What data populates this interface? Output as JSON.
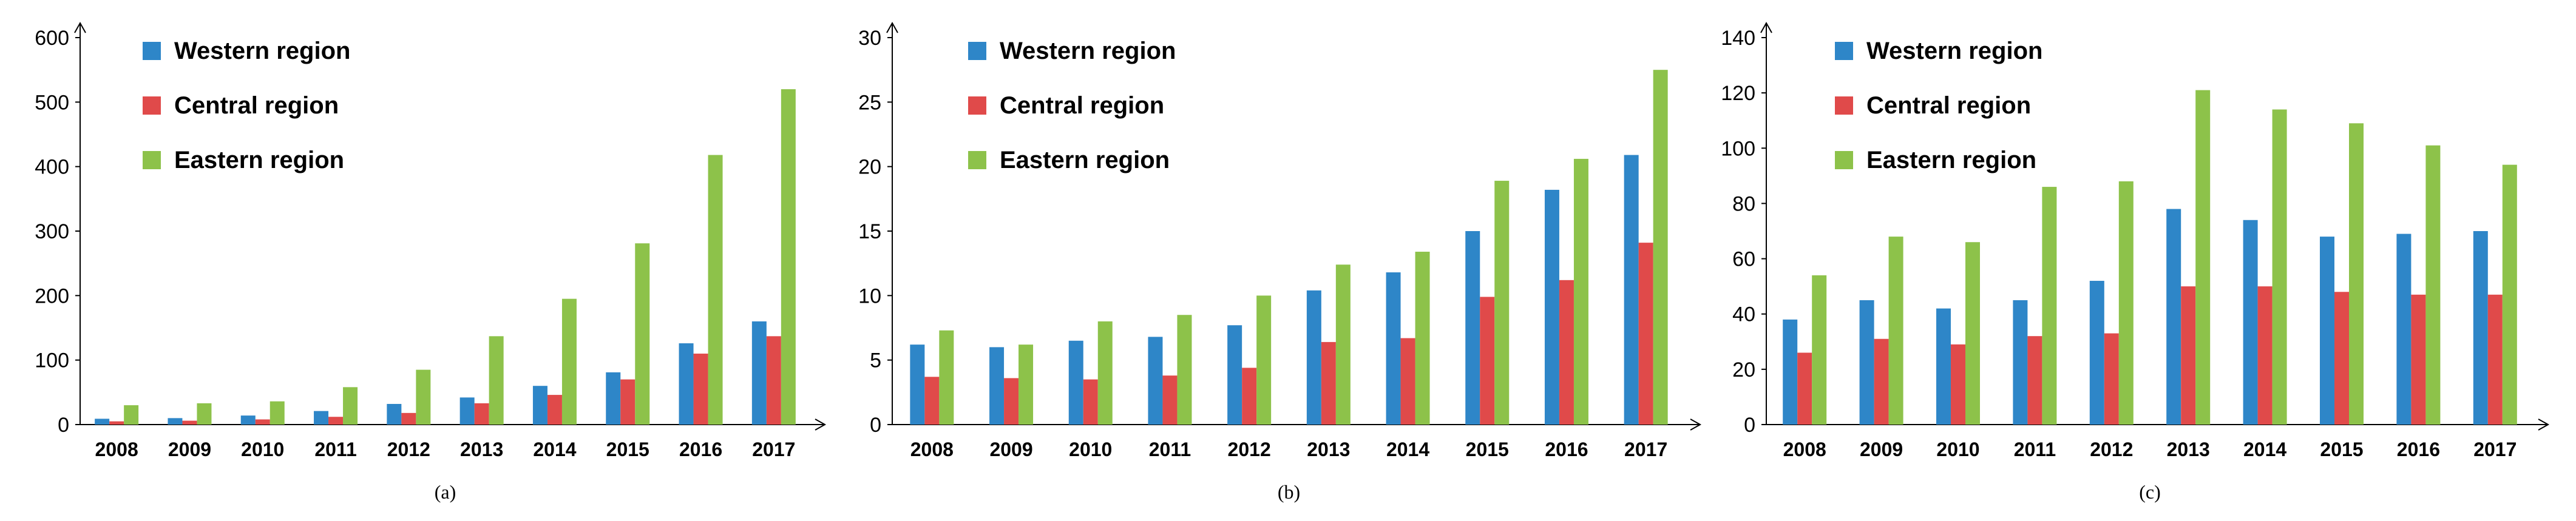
{
  "colors": {
    "western": "#2e86c8",
    "central": "#e04a4a",
    "eastern": "#8dc24a",
    "axis": "#000000"
  },
  "chart_data": [
    {
      "type": "bar",
      "caption": "(a)",
      "categories": [
        "2008",
        "2009",
        "2010",
        "2011",
        "2012",
        "2013",
        "2014",
        "2015",
        "2016",
        "2017"
      ],
      "ylim": [
        0,
        600
      ],
      "yticks": [
        0,
        100,
        200,
        300,
        400,
        500,
        600
      ],
      "legend_position": "top-left",
      "series": [
        {
          "name": "Western region",
          "values": [
            9,
            10,
            14,
            21,
            32,
            42,
            60,
            81,
            126,
            160
          ]
        },
        {
          "name": "Central region",
          "values": [
            5,
            6,
            8,
            12,
            18,
            33,
            46,
            70,
            110,
            137
          ]
        },
        {
          "name": "Eastern region",
          "values": [
            30,
            33,
            36,
            58,
            85,
            137,
            195,
            281,
            418,
            520
          ]
        }
      ]
    },
    {
      "type": "bar",
      "caption": "(b)",
      "categories": [
        "2008",
        "2009",
        "2010",
        "2011",
        "2012",
        "2013",
        "2014",
        "2015",
        "2016",
        "2017"
      ],
      "ylim": [
        0,
        30
      ],
      "yticks": [
        0,
        5,
        10,
        15,
        20,
        25,
        30
      ],
      "legend_position": "top-left",
      "series": [
        {
          "name": "Western region",
          "values": [
            6.2,
            6.0,
            6.5,
            6.8,
            7.7,
            10.4,
            11.8,
            15.0,
            18.2,
            20.9
          ]
        },
        {
          "name": "Central region",
          "values": [
            3.7,
            3.6,
            3.5,
            3.8,
            4.4,
            6.4,
            6.7,
            9.9,
            11.2,
            14.1
          ]
        },
        {
          "name": "Eastern region",
          "values": [
            7.3,
            6.2,
            8.0,
            8.5,
            10.0,
            12.4,
            13.4,
            18.9,
            20.6,
            27.5
          ]
        }
      ]
    },
    {
      "type": "bar",
      "caption": "(c)",
      "categories": [
        "2008",
        "2009",
        "2010",
        "2011",
        "2012",
        "2013",
        "2014",
        "2015",
        "2016",
        "2017"
      ],
      "ylim": [
        0,
        140
      ],
      "yticks": [
        0,
        20,
        40,
        60,
        80,
        100,
        120,
        140
      ],
      "legend_position": "top-left",
      "series": [
        {
          "name": "Western region",
          "values": [
            38,
            45,
            42,
            45,
            52,
            78,
            74,
            68,
            69,
            70
          ]
        },
        {
          "name": "Central region",
          "values": [
            26,
            31,
            29,
            32,
            33,
            50,
            50,
            48,
            47,
            47
          ]
        },
        {
          "name": "Eastern region",
          "values": [
            54,
            68,
            66,
            86,
            88,
            121,
            114,
            109,
            101,
            94
          ]
        }
      ]
    }
  ]
}
